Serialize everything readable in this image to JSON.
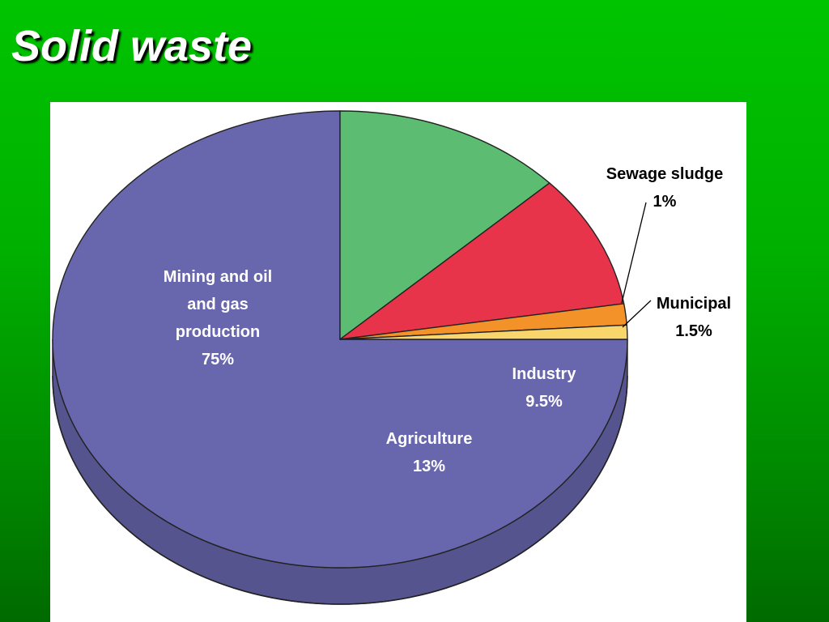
{
  "slide": {
    "title": "Solid waste"
  },
  "chart_data": {
    "type": "pie",
    "style": "3d",
    "title": "",
    "slices": [
      {
        "label": "Mining and oil and gas production",
        "label_lines": [
          "Mining and oil",
          "and gas",
          "production",
          "75%"
        ],
        "value": 75,
        "value_label": "75%",
        "color": "#6866ad",
        "side_color": "#55548e",
        "label_color": "#ffffff"
      },
      {
        "label": "Agriculture",
        "label_lines": [
          "Agriculture",
          "13%"
        ],
        "value": 13,
        "value_label": "13%",
        "color": "#5cbd72",
        "side_color": "#4a9d5e",
        "label_color": "#ffffff"
      },
      {
        "label": "Industry",
        "label_lines": [
          "Industry",
          "9.5%"
        ],
        "value": 9.5,
        "value_label": "9.5%",
        "color": "#e8344b",
        "side_color": "#b72236",
        "label_color": "#ffffff"
      },
      {
        "label": "Municipal",
        "label_lines": [
          "Municipal",
          "1.5%"
        ],
        "value": 1.5,
        "value_label": "1.5%",
        "color": "#f4922a",
        "side_color": "#c8731c",
        "label_color": "#000000"
      },
      {
        "label": "Sewage sludge",
        "label_lines": [
          "Sewage sludge",
          "1%"
        ],
        "value": 1,
        "value_label": "1%",
        "color": "#f8d66c",
        "side_color": "#d7b44b",
        "label_color": "#000000"
      }
    ]
  }
}
